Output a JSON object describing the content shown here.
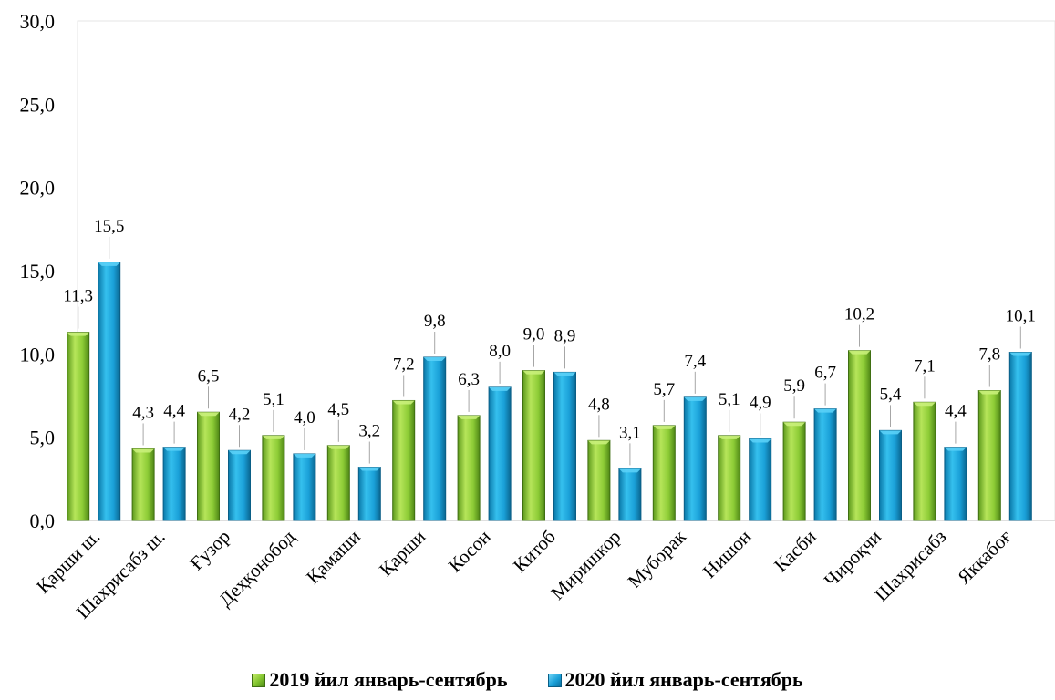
{
  "chart_data": {
    "type": "bar",
    "categories": [
      "Қарши ш.",
      "Шахрисабз ш.",
      "Ғузор",
      "Деҳқонобод",
      "Қамаши",
      "Қарши",
      "Косон",
      "Китоб",
      "Миришкор",
      "Муборак",
      "Нишон",
      "Касби",
      "Чироқчи",
      "Шахрисабз",
      "Яккабоғ"
    ],
    "series": [
      {
        "name": "2019 йил январь-сентябрь",
        "values": [
          11.3,
          4.3,
          6.5,
          5.1,
          4.5,
          7.2,
          6.3,
          9.0,
          4.8,
          5.7,
          5.1,
          5.9,
          10.2,
          7.1,
          7.8
        ],
        "labels": [
          "11,3",
          "4,3",
          "6,5",
          "5,1",
          "4,5",
          "7,2",
          "6,3",
          "9,0",
          "4,8",
          "5,7",
          "5,1",
          "5,9",
          "10,2",
          "7,1",
          "7,8"
        ],
        "color": "#7fc22c"
      },
      {
        "name": "2020 йил январь-сентябрь",
        "values": [
          15.5,
          4.4,
          4.2,
          4.0,
          3.2,
          9.8,
          8.0,
          8.9,
          3.1,
          7.4,
          4.9,
          6.7,
          5.4,
          4.4,
          10.1
        ],
        "labels": [
          "15,5",
          "4,4",
          "4,2",
          "4,0",
          "3,2",
          "9,8",
          "8,0",
          "8,9",
          "3,1",
          "7,4",
          "4,9",
          "6,7",
          "5,4",
          "4,4",
          "10,1"
        ],
        "color": "#1aa0d8"
      }
    ],
    "y_ticks": [
      "0,0",
      "5,0",
      "10,0",
      "15,0",
      "20,0",
      "25,0",
      "30,0"
    ],
    "ylim": [
      0,
      30
    ],
    "grid": false,
    "legend_position": "bottom"
  }
}
